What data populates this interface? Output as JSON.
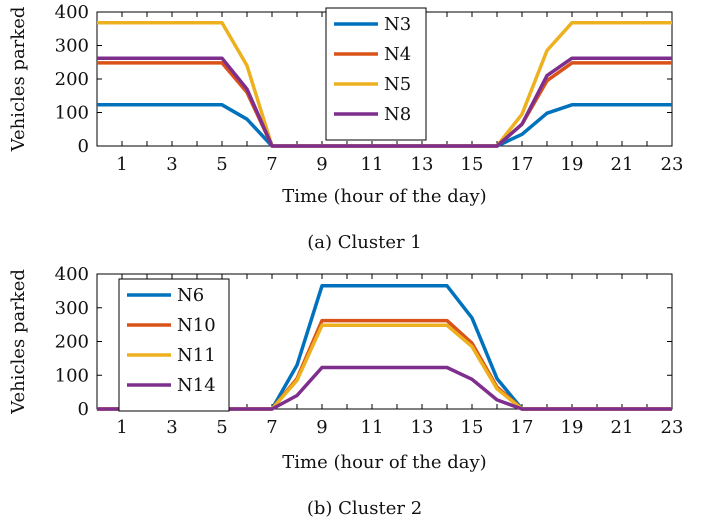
{
  "colors": {
    "blue": "#0072BD",
    "orange": "#D95319",
    "yellow": "#EDB120",
    "purple": "#7E2F8E"
  },
  "chart_data": [
    {
      "type": "line",
      "caption": "(a) Cluster 1",
      "xlabel": "Time (hour of the day)",
      "ylabel": "Vehicles parked",
      "xlim": [
        0,
        23
      ],
      "ylim": [
        0,
        400
      ],
      "xticks": [
        "1",
        "3",
        "5",
        "7",
        "9",
        "11",
        "13",
        "15",
        "17",
        "19",
        "21",
        "23"
      ],
      "yticks": [
        "0",
        "100",
        "200",
        "300",
        "400"
      ],
      "legend_position": "top-center",
      "series": [
        {
          "name": "N3",
          "color": "#0072BD",
          "x": [
            0,
            5,
            6,
            7,
            16,
            17,
            18,
            19,
            23
          ],
          "y": [
            123,
            123,
            80,
            0,
            0,
            35,
            98,
            123,
            123
          ]
        },
        {
          "name": "N4",
          "color": "#D95319",
          "x": [
            0,
            5,
            6,
            7,
            16,
            17,
            18,
            19,
            23
          ],
          "y": [
            248,
            248,
            160,
            0,
            0,
            65,
            195,
            248,
            248
          ]
        },
        {
          "name": "N5",
          "color": "#EDB120",
          "x": [
            0,
            5,
            6,
            7,
            16,
            17,
            18,
            19,
            23
          ],
          "y": [
            368,
            368,
            240,
            0,
            0,
            95,
            285,
            368,
            368
          ]
        },
        {
          "name": "N8",
          "color": "#7E2F8E",
          "x": [
            0,
            5,
            6,
            7,
            16,
            17,
            18,
            19,
            23
          ],
          "y": [
            262,
            262,
            170,
            0,
            0,
            65,
            210,
            262,
            262
          ]
        }
      ]
    },
    {
      "type": "line",
      "caption": "(b) Cluster 2",
      "xlabel": "Time (hour of the day)",
      "ylabel": "Vehicles parked",
      "xlim": [
        0,
        23
      ],
      "ylim": [
        0,
        400
      ],
      "xticks": [
        "1",
        "3",
        "5",
        "7",
        "9",
        "11",
        "13",
        "15",
        "17",
        "19",
        "21",
        "23"
      ],
      "yticks": [
        "0",
        "100",
        "200",
        "300",
        "400"
      ],
      "legend_position": "top-left",
      "series": [
        {
          "name": "N6",
          "color": "#0072BD",
          "x": [
            0,
            7,
            8,
            9,
            14,
            15,
            16,
            17,
            23
          ],
          "y": [
            0,
            0,
            130,
            365,
            365,
            270,
            90,
            0,
            0
          ]
        },
        {
          "name": "N10",
          "color": "#D95319",
          "x": [
            0,
            7,
            8,
            9,
            14,
            15,
            16,
            17,
            23
          ],
          "y": [
            0,
            0,
            90,
            262,
            262,
            195,
            65,
            0,
            0
          ]
        },
        {
          "name": "N11",
          "color": "#EDB120",
          "x": [
            0,
            7,
            8,
            9,
            14,
            15,
            16,
            17,
            23
          ],
          "y": [
            0,
            0,
            85,
            248,
            248,
            185,
            60,
            0,
            0
          ]
        },
        {
          "name": "N14",
          "color": "#7E2F8E",
          "x": [
            0,
            7,
            8,
            9,
            14,
            15,
            16,
            17,
            23
          ],
          "y": [
            0,
            0,
            40,
            123,
            123,
            88,
            27,
            0,
            0
          ]
        }
      ]
    }
  ]
}
